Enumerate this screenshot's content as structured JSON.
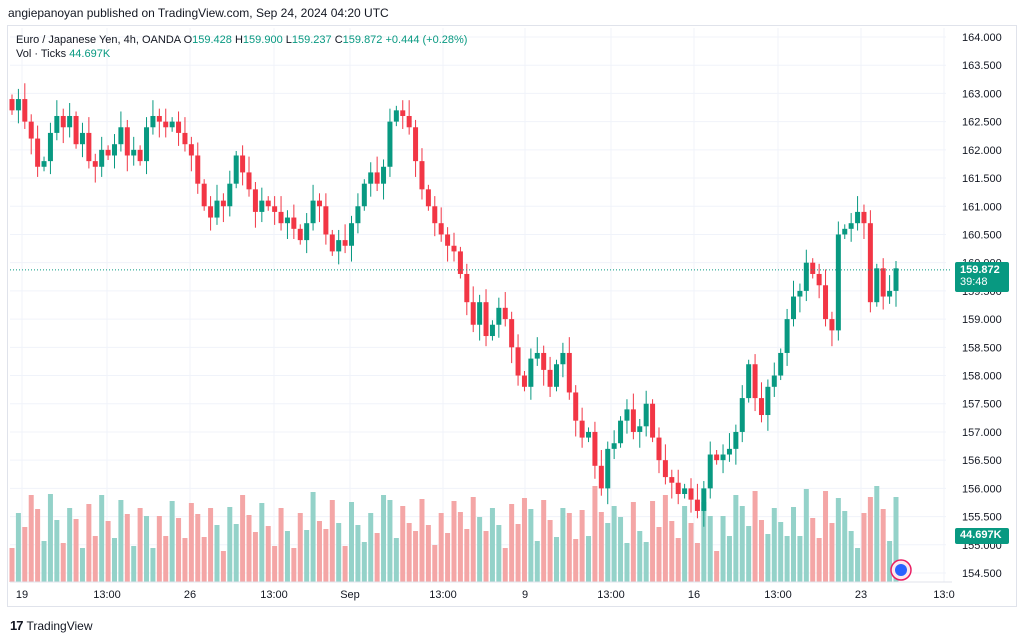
{
  "header": {
    "published": "angiepanoyan published on TradingView.com, Sep 24, 2024 04:20 UTC"
  },
  "legend": {
    "symbol": "Euro / Japanese Yen, 4h, OANDA",
    "open_label": "O",
    "open": "159.428",
    "high_label": "H",
    "high": "159.900",
    "low_label": "L",
    "low": "159.237",
    "close_label": "C",
    "close": "159.872",
    "change": "+0.444 (+0.28%)",
    "volume_title": "Vol · Ticks",
    "volume_value": "44.697K"
  },
  "last_price": {
    "value": "159.872",
    "countdown": "39:48"
  },
  "last_volume": "44.697K",
  "footer": {
    "brand": "TradingView"
  },
  "colors": {
    "up": "#089981",
    "down": "#f23645",
    "up_vol": "#94d2c9",
    "down_vol": "#f4a6a6"
  },
  "chart_data": {
    "type": "candlestick",
    "title": "Euro / Japanese Yen, 4h, OANDA",
    "y_ticks": [
      "164.000",
      "163.500",
      "163.000",
      "162.500",
      "162.000",
      "161.500",
      "161.000",
      "160.500",
      "160.000",
      "159.500",
      "159.000",
      "158.500",
      "158.000",
      "157.500",
      "157.000",
      "156.500",
      "156.000",
      "155.500",
      "155.000",
      "154.500"
    ],
    "x_ticks": [
      "19",
      "13:00",
      "26",
      "13:00",
      "Sep",
      "13:00",
      "9",
      "13:00",
      "16",
      "13:00",
      "23",
      "13:0"
    ],
    "ylim": [
      154.3,
      164.2
    ],
    "series": [
      {
        "name": "EURJPY 4h",
        "closes": [
          162.7,
          162.9,
          162.5,
          162.2,
          161.7,
          161.8,
          162.3,
          162.6,
          162.4,
          162.6,
          162.1,
          162.3,
          161.8,
          161.7,
          162.0,
          161.9,
          162.1,
          162.4,
          161.9,
          162.0,
          161.8,
          162.4,
          162.6,
          162.5,
          162.4,
          162.5,
          162.3,
          162.1,
          161.9,
          161.4,
          161.0,
          160.8,
          161.1,
          161.0,
          161.4,
          161.9,
          161.6,
          161.3,
          160.9,
          161.1,
          161.0,
          160.9,
          160.7,
          160.8,
          160.6,
          160.4,
          160.7,
          161.1,
          161.0,
          160.5,
          160.2,
          160.4,
          160.3,
          160.7,
          161.0,
          161.4,
          161.6,
          161.4,
          161.7,
          162.5,
          162.7,
          162.6,
          162.4,
          161.8,
          161.3,
          161.0,
          160.7,
          160.5,
          160.3,
          160.2,
          159.8,
          159.3,
          158.9,
          159.3,
          158.7,
          158.9,
          159.2,
          159.0,
          158.5,
          158.0,
          157.8,
          158.3,
          158.4,
          158.1,
          157.8,
          158.2,
          158.4,
          157.7,
          157.2,
          156.9,
          157.0,
          156.4,
          156.0,
          156.7,
          156.8,
          157.2,
          157.4,
          157.0,
          157.1,
          157.5,
          156.9,
          156.5,
          156.2,
          156.1,
          155.9,
          156.0,
          155.8,
          155.6,
          156.0,
          156.6,
          156.5,
          156.6,
          156.7,
          157.0,
          157.6,
          158.2,
          157.6,
          157.3,
          157.8,
          158.0,
          158.4,
          159.0,
          159.4,
          159.5,
          160.0,
          159.8,
          159.6,
          159.0,
          158.8,
          160.5,
          160.6,
          160.7,
          160.9,
          160.7,
          159.3,
          159.9,
          159.4,
          159.5,
          159.9
        ]
      }
    ],
    "volume": {
      "name": "Vol · Ticks",
      "last": "44.697K"
    }
  }
}
